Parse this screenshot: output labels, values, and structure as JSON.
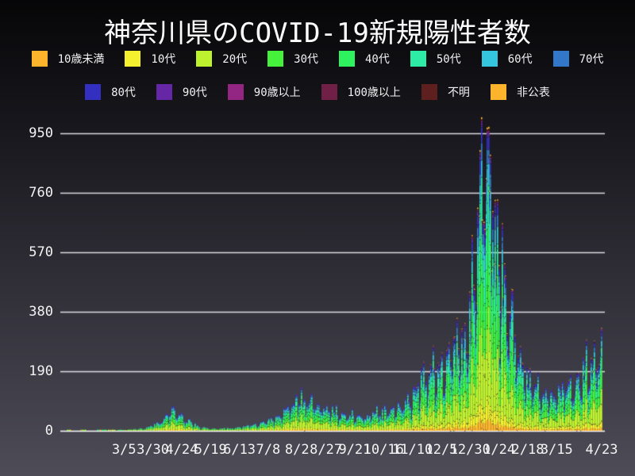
{
  "title": "神奈川県のCOVID-19新規陽性者数",
  "chart_data": {
    "type": "bar",
    "stacked": true,
    "title": "神奈川県のCOVID-19新規陽性者数",
    "x_start_date": "2020-01-16",
    "x_end_date": "2021-04-23",
    "ylim": [
      0,
      1000
    ],
    "grid": true,
    "legend_position": "top",
    "y_ticks": [
      0,
      190,
      380,
      570,
      760,
      950
    ],
    "x_ticks": [
      {
        "label": "3/5",
        "day": 49
      },
      {
        "label": "3/30",
        "day": 74
      },
      {
        "label": "4/24",
        "day": 99
      },
      {
        "label": "5/19",
        "day": 124
      },
      {
        "label": "6/13",
        "day": 149
      },
      {
        "label": "7/8",
        "day": 174
      },
      {
        "label": "8/2",
        "day": 199
      },
      {
        "label": "8/27",
        "day": 224
      },
      {
        "label": "9/21",
        "day": 249
      },
      {
        "label": "10/16",
        "day": 274
      },
      {
        "label": "11/10",
        "day": 299
      },
      {
        "label": "12/5",
        "day": 324
      },
      {
        "label": "12/30",
        "day": 349
      },
      {
        "label": "1/24",
        "day": 374
      },
      {
        "label": "2/18",
        "day": 399
      },
      {
        "label": "3/15",
        "day": 424
      },
      {
        "label": "4/23",
        "day": 463
      }
    ],
    "groups": [
      {
        "key": "age-0-9",
        "label": "10歳未満",
        "color": "#fcb42c",
        "fraction": 0.035,
        "row": 1
      },
      {
        "key": "age-10s",
        "label": "10代",
        "color": "#f6f12e",
        "fraction": 0.06,
        "row": 1
      },
      {
        "key": "age-20s",
        "label": "20代",
        "color": "#bff22e",
        "fraction": 0.26,
        "row": 1
      },
      {
        "key": "age-30s",
        "label": "30代",
        "color": "#46f13c",
        "fraction": 0.17,
        "row": 1
      },
      {
        "key": "age-40s",
        "label": "40代",
        "color": "#2ef25e",
        "fraction": 0.15,
        "row": 1
      },
      {
        "key": "age-50s",
        "label": "50代",
        "color": "#2eeca5",
        "fraction": 0.125,
        "row": 1
      },
      {
        "key": "age-60s",
        "label": "60代",
        "color": "#34c6de",
        "fraction": 0.075,
        "row": 1
      },
      {
        "key": "age-70s",
        "label": "70代",
        "color": "#3377c8",
        "fraction": 0.052,
        "row": 1
      },
      {
        "key": "age-80s",
        "label": "80代",
        "color": "#3330c1",
        "fraction": 0.04,
        "row": 2
      },
      {
        "key": "age-90s",
        "label": "90代",
        "color": "#6527a5",
        "fraction": 0.016,
        "row": 2
      },
      {
        "key": "age-90-plus",
        "label": "90歳以上",
        "color": "#932583",
        "fraction": 0.005,
        "row": 2
      },
      {
        "key": "age-100-plus",
        "label": "100歳以上",
        "color": "#702047",
        "fraction": 0.002,
        "row": 2
      },
      {
        "key": "unknown",
        "label": "不明",
        "color": "#5e1f1f",
        "fraction": 0.005,
        "row": 2
      },
      {
        "key": "undisclosed",
        "label": "非公表",
        "color": "#fcb42c",
        "fraction": 0.005,
        "row": 2
      }
    ],
    "daily_total_anchors": {
      "days": [
        0,
        7,
        14,
        21,
        28,
        35,
        42,
        49,
        56,
        63,
        70,
        77,
        84,
        91,
        98,
        105,
        112,
        119,
        126,
        133,
        140,
        147,
        154,
        161,
        168,
        175,
        182,
        189,
        196,
        203,
        210,
        217,
        224,
        231,
        238,
        245,
        252,
        259,
        266,
        273,
        280,
        287,
        294,
        301,
        308,
        315,
        322,
        329,
        336,
        343,
        350,
        357,
        364,
        371,
        378,
        385,
        392,
        399,
        406,
        413,
        420,
        427,
        434,
        441,
        448,
        455,
        462,
        463
      ],
      "values": [
        1,
        0,
        1,
        0,
        1,
        2,
        3,
        4,
        5,
        7,
        10,
        22,
        40,
        60,
        50,
        32,
        18,
        10,
        7,
        7,
        9,
        11,
        14,
        18,
        24,
        32,
        45,
        60,
        78,
        100,
        88,
        80,
        68,
        58,
        52,
        48,
        44,
        48,
        52,
        58,
        64,
        72,
        85,
        115,
        150,
        175,
        185,
        210,
        235,
        270,
        400,
        640,
        890,
        700,
        450,
        320,
        235,
        175,
        130,
        105,
        115,
        125,
        135,
        150,
        170,
        200,
        240,
        255
      ]
    },
    "weekday_factors": [
      0.62,
      0.8,
      1.04,
      1.1,
      1.13,
      1.16,
      0.97
    ],
    "start_weekday_index": 3,
    "noise_amplitude": 0.18,
    "max_daily_total": 985
  }
}
